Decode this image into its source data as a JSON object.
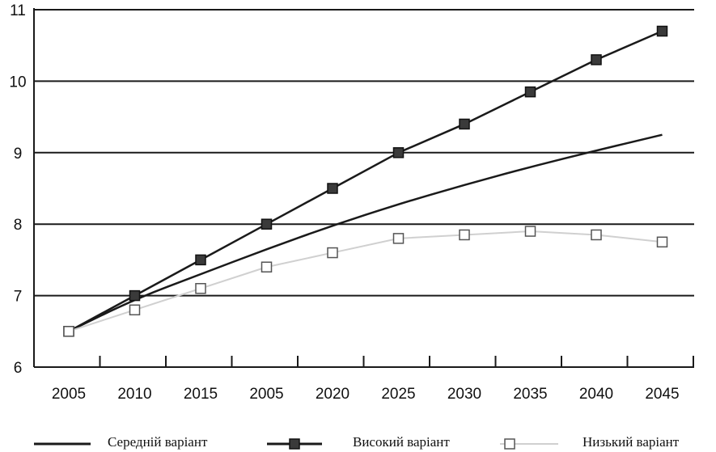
{
  "chart_data": {
    "type": "line",
    "categories": [
      "2005",
      "2010",
      "2015",
      "2005",
      "2020",
      "2025",
      "2030",
      "2035",
      "2040",
      "2045"
    ],
    "ylim": [
      6,
      11
    ],
    "yticks": [
      "6",
      "7",
      "8",
      "9",
      "10",
      "11"
    ],
    "grid": "horizontal",
    "legend_position": "bottom",
    "series": [
      {
        "name": "Середній варіант",
        "values": [
          6.5,
          6.95,
          7.3,
          7.65,
          7.98,
          8.28,
          8.55,
          8.8,
          9.03,
          9.25
        ],
        "color": "#1a1a1a",
        "marker": "none"
      },
      {
        "name": "Високий варіант",
        "values": [
          6.5,
          7.0,
          7.5,
          8.0,
          8.5,
          9.0,
          9.4,
          9.85,
          10.3,
          10.7
        ],
        "color": "#1a1a1a",
        "marker": "filled-square"
      },
      {
        "name": "Низький варіант",
        "values": [
          6.5,
          6.8,
          7.1,
          7.4,
          7.6,
          7.8,
          7.85,
          7.9,
          7.85,
          7.75
        ],
        "color": "#d0d0d0",
        "marker": "open-square"
      }
    ]
  }
}
